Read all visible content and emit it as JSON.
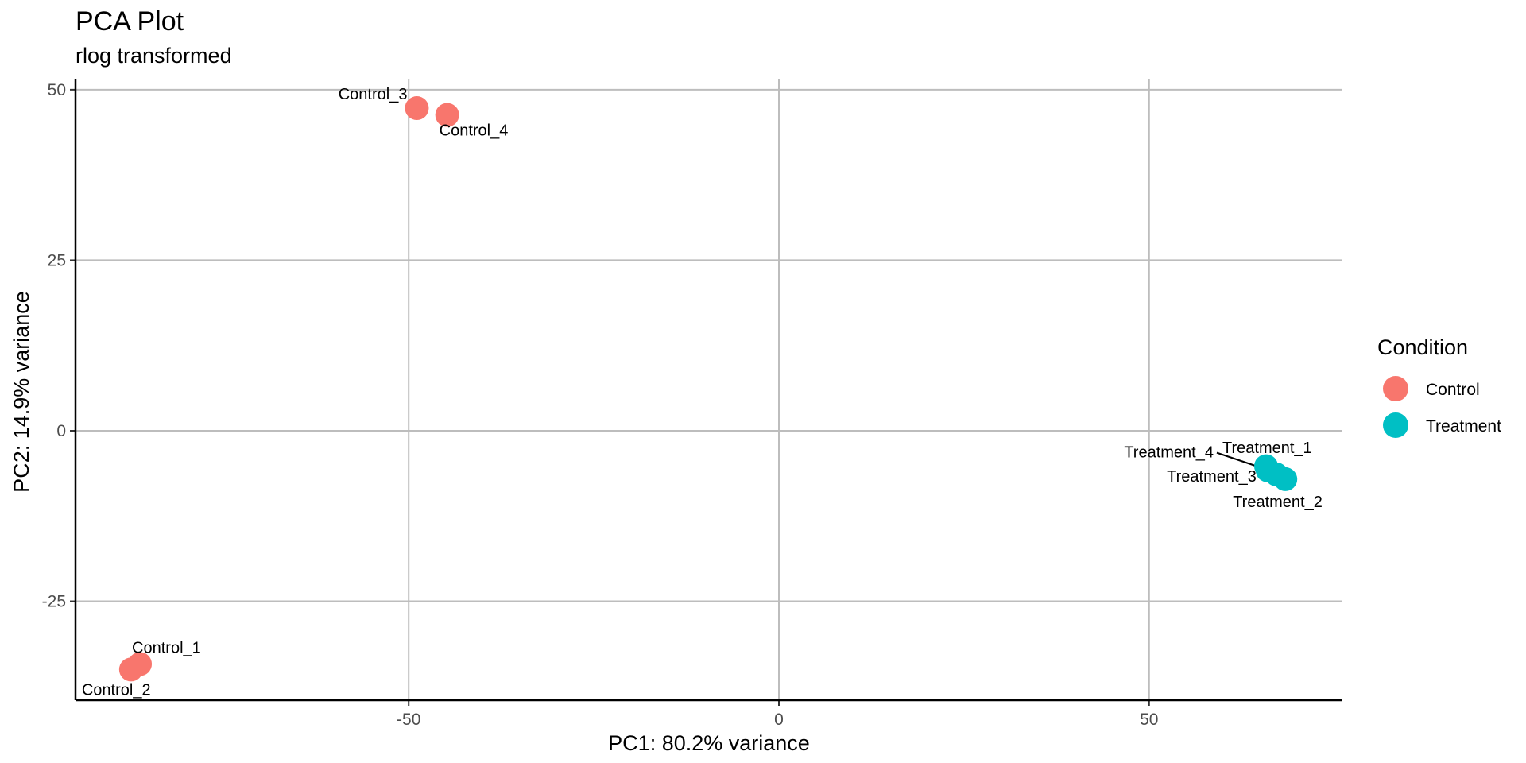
{
  "chart_data": {
    "type": "scatter",
    "title": "PCA Plot",
    "subtitle": "rlog transformed",
    "xlabel": "PC1: 80.2% variance",
    "ylabel": "PC2: 14.9% variance",
    "xlim": [
      -95,
      76
    ],
    "ylim": [
      -39.5,
      51.5
    ],
    "xticks": [
      -50,
      0,
      50
    ],
    "xtick_labels": [
      "-50",
      "0",
      "50"
    ],
    "yticks": [
      -25,
      0,
      25,
      50
    ],
    "ytick_labels": [
      "-25",
      "0",
      "25",
      "50"
    ],
    "grid": true,
    "legend_title": "Condition",
    "legend_position": "right",
    "series": [
      {
        "name": "Control",
        "color": "#F8766D",
        "points": [
          {
            "label": "Control_1",
            "x": -86.3,
            "y": -34.2
          },
          {
            "label": "Control_2",
            "x": -87.5,
            "y": -35.0
          },
          {
            "label": "Control_3",
            "x": -48.9,
            "y": 47.3
          },
          {
            "label": "Control_4",
            "x": -44.8,
            "y": 46.3
          }
        ]
      },
      {
        "name": "Treatment",
        "color": "#00BFC4",
        "points": [
          {
            "label": "Treatment_1",
            "x": 67.2,
            "y": -6.4
          },
          {
            "label": "Treatment_2",
            "x": 68.4,
            "y": -7.1
          },
          {
            "label": "Treatment_3",
            "x": 66.0,
            "y": -5.8
          },
          {
            "label": "Treatment_4",
            "x": 65.8,
            "y": -5.2
          }
        ]
      }
    ]
  }
}
